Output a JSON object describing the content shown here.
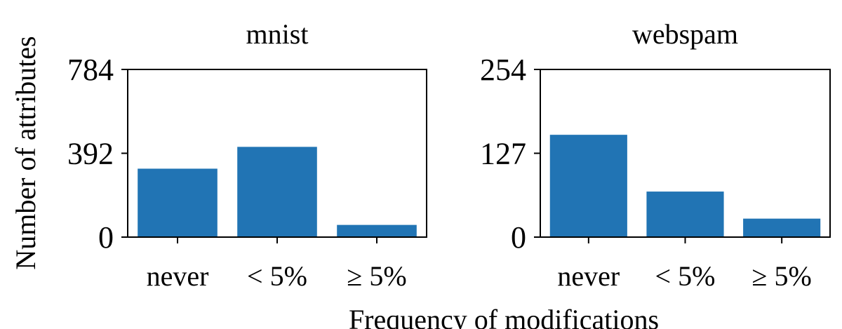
{
  "figure": {
    "ylabel": "Number of attributes",
    "xlabel": "Frequency of modifications"
  },
  "colors": {
    "bar": "#2174b4",
    "axis": "#000000",
    "background": "#ffffff"
  },
  "chart_data": [
    {
      "type": "bar",
      "title": "mnist",
      "categories": [
        "never",
        "< 5%",
        "≥ 5%"
      ],
      "values": [
        320,
        422,
        57
      ],
      "yticks": [
        0,
        392,
        784
      ],
      "ytick_labels": [
        "0",
        "392",
        "784"
      ],
      "ylim": [
        0,
        784
      ],
      "grid": false
    },
    {
      "type": "bar",
      "title": "webspam",
      "categories": [
        "never",
        "< 5%",
        "≥ 5%"
      ],
      "values": [
        155,
        69,
        28
      ],
      "yticks": [
        0,
        127,
        254
      ],
      "ytick_labels": [
        "0",
        "127",
        "254"
      ],
      "ylim": [
        0,
        254
      ],
      "grid": false
    }
  ]
}
